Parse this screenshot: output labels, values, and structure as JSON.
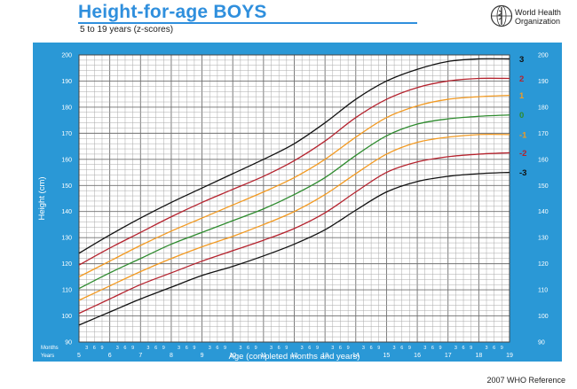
{
  "header": {
    "title": "Height-for-age  BOYS",
    "subtitle": "5 to 19 years (z-scores)",
    "org_line1": "World Health",
    "org_line2": "Organization"
  },
  "footer": {
    "reference": "2007 WHO Reference"
  },
  "colors": {
    "frame": "#2a98d6",
    "title": "#2f8fdd",
    "z3": "#111111",
    "z2": "#b5232e",
    "z1": "#f29a22",
    "z0": "#2e8b2e"
  },
  "chart_data": {
    "type": "line",
    "title": "Height-for-age  BOYS",
    "subtitle": "5 to 19 years (z-scores)",
    "xlabel": "Age (completed months and years)",
    "ylabel": "Height (cm)",
    "xlim": [
      5,
      19
    ],
    "ylim": [
      90,
      200
    ],
    "year_ticks": [
      "5",
      "6",
      "7",
      "8",
      "9",
      "10",
      "11",
      "12",
      "13",
      "14",
      "15",
      "16",
      "17",
      "18",
      "19"
    ],
    "y_ticks": [
      "90",
      "100",
      "110",
      "120",
      "130",
      "140",
      "150",
      "160",
      "170",
      "180",
      "190",
      "200"
    ],
    "month_tick_labels": [
      "3",
      "6",
      "9"
    ],
    "months_label": "Months",
    "years_label": "Years",
    "grid": true,
    "x": [
      5,
      6,
      7,
      8,
      9,
      10,
      11,
      12,
      13,
      14,
      15,
      16,
      17,
      18,
      19
    ],
    "series": [
      {
        "name": "3",
        "color": "#111111",
        "values": [
          124,
          131,
          137.5,
          143.5,
          149,
          154.5,
          160,
          166,
          174,
          183,
          190,
          194.5,
          197.5,
          198.5,
          198.5
        ]
      },
      {
        "name": "2",
        "color": "#b5232e",
        "values": [
          119.5,
          126,
          132,
          138,
          143.5,
          148.5,
          153.5,
          159.5,
          167,
          176,
          183,
          187.5,
          190,
          191,
          191
        ]
      },
      {
        "name": "1",
        "color": "#f29a22",
        "values": [
          115,
          121,
          127,
          132.5,
          137.5,
          142.5,
          147.5,
          153,
          160,
          168.5,
          176,
          180.5,
          183,
          184,
          184.5
        ]
      },
      {
        "name": "0",
        "color": "#2e8b2e",
        "values": [
          110.5,
          116.5,
          122,
          127.5,
          132,
          136.5,
          141,
          146.5,
          153,
          161.5,
          169,
          173.5,
          175.5,
          176.5,
          177
        ]
      },
      {
        "name": "-1",
        "color": "#f29a22",
        "values": [
          106,
          111.5,
          117,
          122,
          126.5,
          130.5,
          135,
          140,
          146.5,
          154.5,
          162,
          166.5,
          168.5,
          169.5,
          169.5
        ]
      },
      {
        "name": "-2",
        "color": "#b5232e",
        "values": [
          101,
          106.5,
          112,
          116.5,
          121,
          125,
          129,
          133.5,
          139.5,
          147.5,
          155,
          159,
          161,
          162,
          162.5
        ]
      },
      {
        "name": "-3",
        "color": "#111111",
        "values": [
          96.5,
          101.5,
          106.5,
          111,
          115.5,
          119,
          123,
          127.5,
          133,
          140.5,
          147.5,
          151.5,
          153.5,
          154.5,
          155
        ]
      }
    ]
  }
}
